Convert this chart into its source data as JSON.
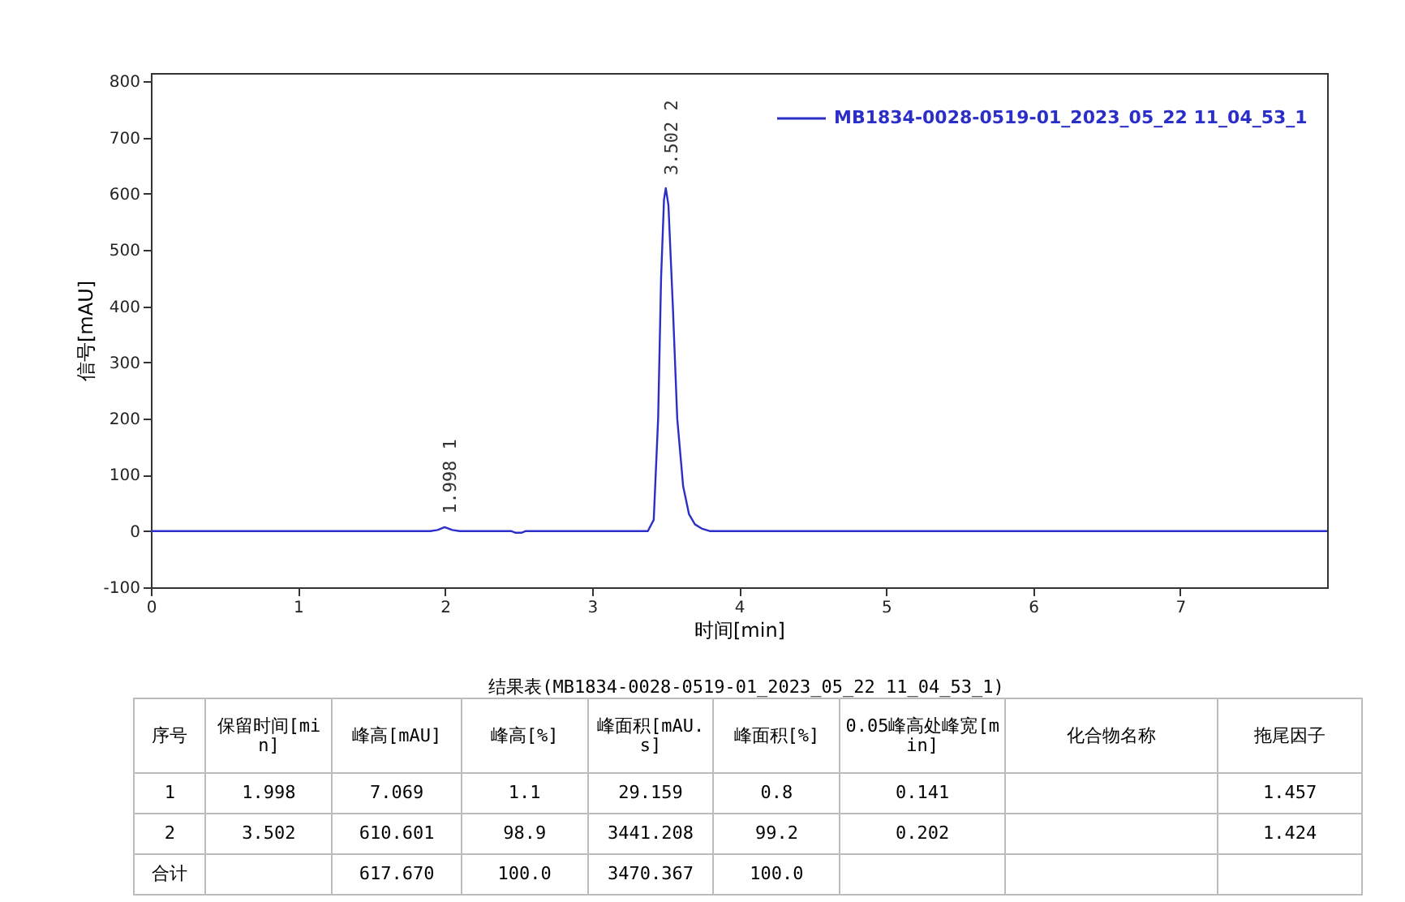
{
  "chart_data": {
    "type": "line",
    "xlabel": "时间[min]",
    "ylabel": "信号[mAU]",
    "xlim": [
      0,
      8
    ],
    "ylim": [
      -100,
      815
    ],
    "xticks": [
      0,
      1,
      2,
      3,
      4,
      5,
      6,
      7
    ],
    "yticks": [
      -100,
      0,
      100,
      200,
      300,
      400,
      500,
      600,
      700,
      800
    ],
    "grid": false,
    "legend": "top right",
    "marker": "none",
    "line_style": "solid",
    "x": [
      0,
      1.9,
      1.95,
      1.998,
      2.05,
      2.1,
      2.45,
      2.48,
      2.52,
      2.55,
      3.38,
      3.42,
      3.45,
      3.47,
      3.49,
      3.502,
      3.52,
      3.55,
      3.58,
      3.62,
      3.66,
      3.7,
      3.75,
      3.8,
      8
    ],
    "series": [
      {
        "name": "MB1834-0028-0519-01_2023_05_22 11_04_53_1",
        "color": "#2b2fc8",
        "values": [
          0,
          0,
          2,
          7,
          2,
          0,
          0,
          -3,
          -3,
          0,
          0,
          20,
          200,
          450,
          590,
          610,
          580,
          400,
          200,
          80,
          30,
          12,
          4,
          0,
          0
        ]
      }
    ],
    "annotations": [
      {
        "text": "1.998  1",
        "x": 1.998,
        "y": 7
      },
      {
        "text": "3.502  2",
        "x": 3.502,
        "y": 610
      },
      "结果表(MB1834-0028-0519-01_2023_05_22 11_04_53_1)",
      "序号",
      "保留时间[min]",
      "峰高[mAU]",
      "峰高[%]",
      "峰面积[mAU.s]",
      "峰面积[%]",
      "0.05峰高处峰宽[min]",
      "化合物名称",
      "拖尾因子",
      "1",
      "1.998",
      "7.069",
      "1.1",
      "29.159",
      "0.8",
      "0.141",
      null,
      "1.457",
      "2",
      "3.502",
      "610.601",
      "98.9",
      "3441.208",
      "99.2",
      "0.202",
      null,
      "1.424",
      "合计",
      null,
      "617.670",
      "100.0",
      "3470.367",
      "100.0",
      null,
      null,
      null
    ]
  }
}
